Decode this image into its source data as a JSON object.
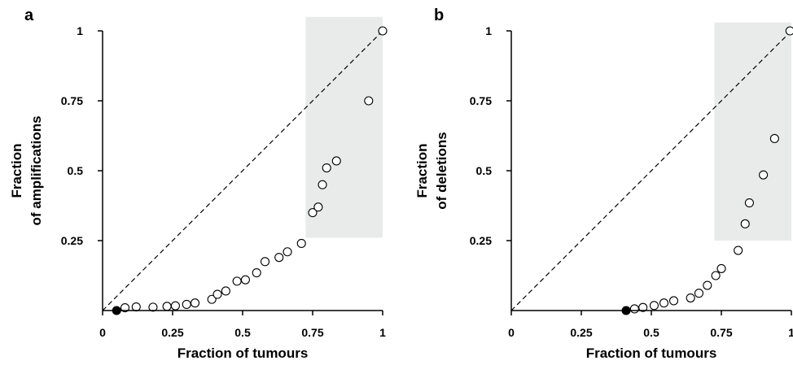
{
  "chart_data": [
    {
      "panel_label": "a",
      "type": "scatter",
      "xlabel": "Fraction of tumours",
      "ylabel_lines": [
        "Fraction",
        "of amplifications"
      ],
      "xlim": [
        0,
        1
      ],
      "ylim": [
        0,
        1
      ],
      "x_ticks": [
        0,
        0.25,
        0.5,
        0.75,
        1
      ],
      "x_tick_labels": [
        "0",
        "0.25",
        "0.5",
        "0.75",
        "1"
      ],
      "y_ticks": [
        0.25,
        0.5,
        0.75,
        1
      ],
      "y_tick_labels": [
        "0.25",
        "0.5",
        "0.75",
        "1"
      ],
      "diagonal": true,
      "shaded_region": {
        "x": [
          0.725,
          1.0
        ],
        "y": [
          0.26,
          1.05
        ]
      },
      "filled_point": {
        "x": 0.05,
        "y": 0.0
      },
      "points": [
        {
          "x": 0.08,
          "y": 0.01
        },
        {
          "x": 0.12,
          "y": 0.013
        },
        {
          "x": 0.18,
          "y": 0.012
        },
        {
          "x": 0.23,
          "y": 0.015
        },
        {
          "x": 0.26,
          "y": 0.017
        },
        {
          "x": 0.3,
          "y": 0.022
        },
        {
          "x": 0.33,
          "y": 0.027
        },
        {
          "x": 0.39,
          "y": 0.04
        },
        {
          "x": 0.41,
          "y": 0.058
        },
        {
          "x": 0.44,
          "y": 0.07
        },
        {
          "x": 0.48,
          "y": 0.105
        },
        {
          "x": 0.51,
          "y": 0.11
        },
        {
          "x": 0.55,
          "y": 0.135
        },
        {
          "x": 0.58,
          "y": 0.175
        },
        {
          "x": 0.63,
          "y": 0.19
        },
        {
          "x": 0.66,
          "y": 0.21
        },
        {
          "x": 0.71,
          "y": 0.24
        },
        {
          "x": 0.75,
          "y": 0.35
        },
        {
          "x": 0.77,
          "y": 0.37
        },
        {
          "x": 0.785,
          "y": 0.45
        },
        {
          "x": 0.8,
          "y": 0.51
        },
        {
          "x": 0.835,
          "y": 0.535
        },
        {
          "x": 0.95,
          "y": 0.75
        },
        {
          "x": 1.0,
          "y": 1.0
        }
      ]
    },
    {
      "panel_label": "b",
      "type": "scatter",
      "xlabel": "Fraction of tumours",
      "ylabel_lines": [
        "Fraction",
        "of deletions"
      ],
      "xlim": [
        0,
        1
      ],
      "ylim": [
        0,
        1
      ],
      "x_ticks": [
        0,
        0.25,
        0.5,
        0.75,
        1
      ],
      "x_tick_labels": [
        "0",
        "0.25",
        "0.5",
        "0.75",
        "1"
      ],
      "y_ticks": [
        0.25,
        0.5,
        0.75,
        1
      ],
      "y_tick_labels": [
        "0.25",
        "0.5",
        "0.75",
        "1"
      ],
      "diagonal": true,
      "shaded_region": {
        "x": [
          0.725,
          1.0
        ],
        "y": [
          0.25,
          1.03
        ]
      },
      "filled_point": {
        "x": 0.41,
        "y": 0.0
      },
      "points": [
        {
          "x": 0.44,
          "y": 0.006
        },
        {
          "x": 0.47,
          "y": 0.011
        },
        {
          "x": 0.51,
          "y": 0.018
        },
        {
          "x": 0.545,
          "y": 0.027
        },
        {
          "x": 0.58,
          "y": 0.035
        },
        {
          "x": 0.64,
          "y": 0.045
        },
        {
          "x": 0.67,
          "y": 0.062
        },
        {
          "x": 0.7,
          "y": 0.09
        },
        {
          "x": 0.73,
          "y": 0.125
        },
        {
          "x": 0.75,
          "y": 0.15
        },
        {
          "x": 0.81,
          "y": 0.215
        },
        {
          "x": 0.835,
          "y": 0.31
        },
        {
          "x": 0.85,
          "y": 0.385
        },
        {
          "x": 0.9,
          "y": 0.485
        },
        {
          "x": 0.94,
          "y": 0.615
        },
        {
          "x": 0.995,
          "y": 1.0
        }
      ]
    }
  ]
}
